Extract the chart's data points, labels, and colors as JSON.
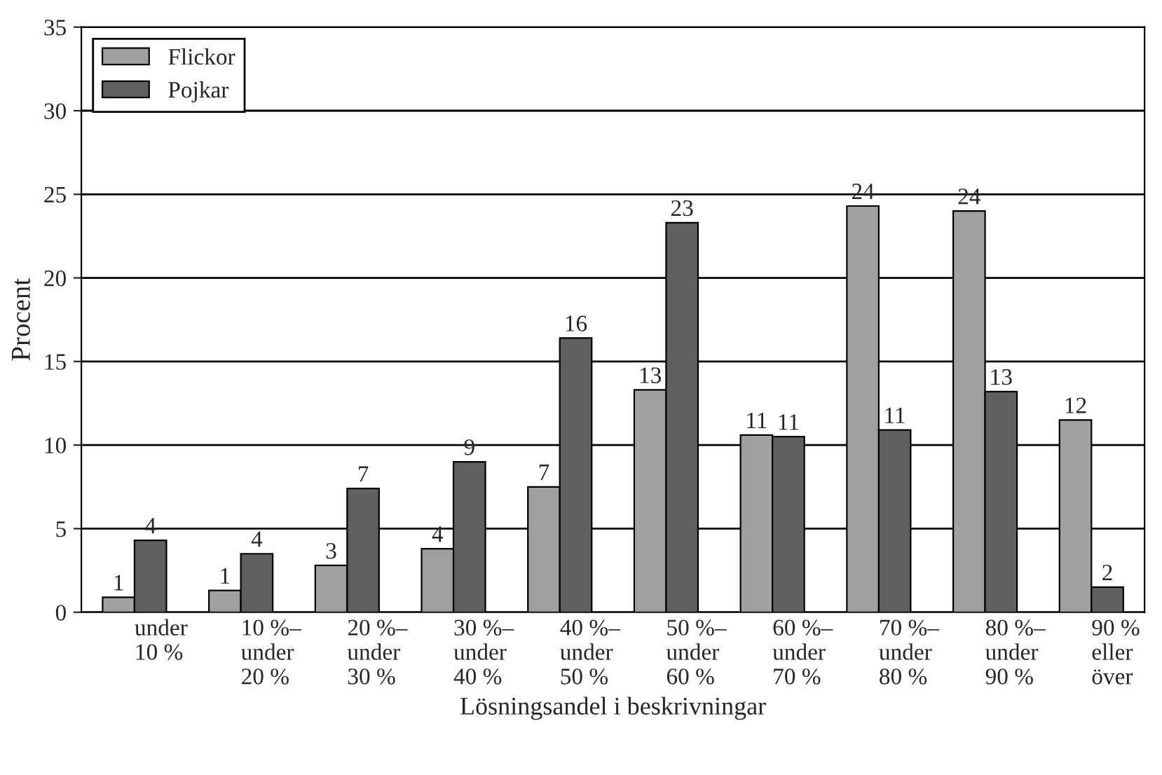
{
  "chart_data": {
    "type": "bar",
    "xlabel": "Lösningsandel i beskrivningar",
    "ylabel": "Procent",
    "categories": [
      "under\n10 %",
      "10 %–\nunder\n20 %",
      "20 %–\nunder\n30 %",
      "30 %–\nunder\n40 %",
      "40 %–\nunder\n50 %",
      "50 %–\nunder\n60 %",
      "60 %–\nunder\n70 %",
      "70 %–\nunder\n80 %",
      "80 %–\nunder\n90 %",
      "90 %\neller\növer"
    ],
    "series": [
      {
        "name": "Flickor",
        "color": "#a0a0a0",
        "values": [
          0.9,
          1.3,
          2.8,
          3.8,
          7.5,
          13.3,
          10.6,
          24.3,
          24.0,
          11.5
        ],
        "value_labels": [
          "1",
          "1",
          "3",
          "4",
          "7",
          "13",
          "11",
          "24",
          "24",
          "12"
        ]
      },
      {
        "name": "Pojkar",
        "color": "#606060",
        "values": [
          4.3,
          3.5,
          7.4,
          9.0,
          16.4,
          23.3,
          10.5,
          10.9,
          13.2,
          1.5
        ],
        "value_labels": [
          "4",
          "4",
          "7",
          "9",
          "16",
          "23",
          "11",
          "11",
          "13",
          "2"
        ]
      }
    ],
    "ylim": [
      0,
      35
    ],
    "yticks": [
      0,
      5,
      10,
      15,
      20,
      25,
      30,
      35
    ],
    "grid": "y",
    "legend": "top left"
  }
}
